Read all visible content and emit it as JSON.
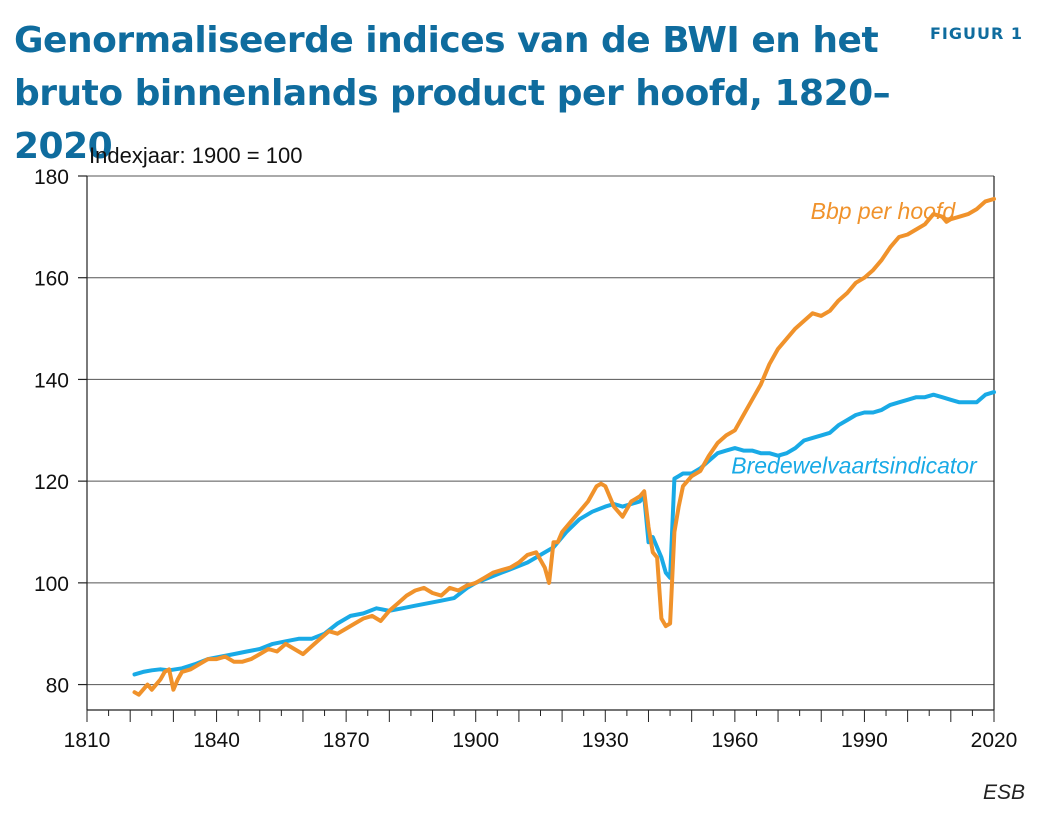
{
  "header": {
    "title": "Genormaliseerde indices van de BWI en het bruto binnenlands product per hoofd, 1820–2020",
    "figure_label": "FIGUUR 1"
  },
  "footer": {
    "source": "ESB"
  },
  "chart_data": {
    "type": "line",
    "title": "Genormaliseerde indices van de BWI en het bruto binnenlands product per hoofd, 1820–2020",
    "subtitle": "Indexjaar: 1900 = 100",
    "xlabel": "",
    "ylabel": "",
    "xlim": [
      1810,
      2020
    ],
    "ylim": [
      75,
      180
    ],
    "x_ticks": [
      1810,
      1840,
      1870,
      1900,
      1930,
      1960,
      1990,
      2020
    ],
    "y_ticks": [
      80,
      100,
      120,
      140,
      160,
      180
    ],
    "grid": "horizontal",
    "series": [
      {
        "name": "Bbp per hoofd",
        "color": "#f0922b",
        "x": [
          1821,
          1822,
          1823,
          1824,
          1825,
          1826,
          1827,
          1828,
          1829,
          1830,
          1831,
          1832,
          1834,
          1836,
          1838,
          1840,
          1842,
          1844,
          1846,
          1848,
          1850,
          1852,
          1854,
          1856,
          1858,
          1860,
          1862,
          1864,
          1866,
          1868,
          1870,
          1872,
          1874,
          1876,
          1878,
          1880,
          1882,
          1884,
          1886,
          1888,
          1890,
          1892,
          1894,
          1896,
          1898,
          1900,
          1902,
          1904,
          1906,
          1908,
          1910,
          1912,
          1914,
          1916,
          1917,
          1918,
          1919,
          1920,
          1922,
          1924,
          1926,
          1928,
          1929,
          1930,
          1932,
          1934,
          1936,
          1938,
          1939,
          1940,
          1941,
          1942,
          1943,
          1944,
          1945,
          1946,
          1947,
          1948,
          1950,
          1952,
          1954,
          1956,
          1958,
          1960,
          1962,
          1964,
          1966,
          1968,
          1970,
          1972,
          1974,
          1976,
          1978,
          1980,
          1982,
          1984,
          1986,
          1988,
          1990,
          1992,
          1994,
          1996,
          1998,
          2000,
          2002,
          2004,
          2006,
          2008,
          2009,
          2010,
          2012,
          2014,
          2016,
          2018,
          2020
        ],
        "values": [
          78.5,
          78,
          79,
          80,
          79,
          80,
          81,
          82.5,
          83,
          79,
          81,
          82.5,
          83,
          84,
          85,
          85,
          85.5,
          84.5,
          84.5,
          85,
          86,
          87,
          86.5,
          88,
          87,
          86,
          87.5,
          89,
          90.5,
          90,
          91,
          92,
          93,
          93.5,
          92.5,
          94.5,
          96,
          97.5,
          98.5,
          99,
          98,
          97.5,
          99,
          98.5,
          99.5,
          100,
          101,
          102,
          102.5,
          103,
          104,
          105.5,
          106,
          103,
          100,
          108,
          108,
          110,
          112,
          114,
          116,
          119,
          119.5,
          119,
          115,
          113,
          116,
          117,
          118,
          111,
          106,
          105,
          93,
          91.5,
          92,
          110,
          115,
          119,
          121,
          122,
          125,
          127.5,
          129,
          130,
          133,
          136,
          139,
          143,
          146,
          148,
          150,
          151.5,
          153,
          152.5,
          153.5,
          155.5,
          157,
          159,
          160,
          161.5,
          163.5,
          166,
          168,
          168.5,
          169.5,
          170.5,
          172.5,
          172,
          171,
          171.5,
          172,
          172.5,
          173.5,
          175,
          175.5
        ]
      },
      {
        "name": "Bredewelvaartsindicator",
        "color": "#19aae6",
        "x": [
          1821,
          1823,
          1825,
          1827,
          1829,
          1832,
          1835,
          1838,
          1841,
          1844,
          1847,
          1850,
          1853,
          1856,
          1859,
          1862,
          1865,
          1868,
          1871,
          1874,
          1877,
          1880,
          1883,
          1886,
          1889,
          1892,
          1895,
          1898,
          1900,
          1903,
          1906,
          1909,
          1912,
          1915,
          1918,
          1921,
          1924,
          1927,
          1930,
          1932,
          1934,
          1936,
          1938,
          1939,
          1940,
          1941,
          1942,
          1943,
          1944,
          1945,
          1946,
          1947,
          1948,
          1950,
          1952,
          1954,
          1956,
          1958,
          1960,
          1962,
          1964,
          1966,
          1968,
          1970,
          1972,
          1974,
          1976,
          1978,
          1980,
          1982,
          1984,
          1986,
          1988,
          1990,
          1992,
          1994,
          1996,
          1998,
          2000,
          2002,
          2004,
          2006,
          2008,
          2010,
          2012,
          2014,
          2016,
          2018,
          2020
        ],
        "values": [
          82,
          82.5,
          82.8,
          83,
          82.8,
          83.2,
          84,
          85,
          85.5,
          86,
          86.5,
          87,
          88,
          88.5,
          89,
          89,
          90,
          92,
          93.5,
          94,
          95,
          94.5,
          95,
          95.5,
          96,
          96.5,
          97,
          99,
          100,
          101,
          102,
          103,
          104,
          105.5,
          107,
          110,
          112.5,
          114,
          115,
          115.5,
          115,
          115.5,
          116,
          117,
          108,
          109,
          107,
          105,
          102,
          101,
          120.5,
          121,
          121.5,
          121.5,
          122.5,
          124,
          125.5,
          126,
          126.5,
          126,
          126,
          125.5,
          125.5,
          125,
          125.5,
          126.5,
          128,
          128.5,
          129,
          129.5,
          131,
          132,
          133,
          133.5,
          133.5,
          134,
          135,
          135.5,
          136,
          136.5,
          136.5,
          137,
          136.5,
          136,
          135.5,
          135.5,
          135.5,
          137,
          137.5
        ]
      }
    ],
    "annotations": [
      {
        "text": "Bbp per hoofd",
        "series": 0
      },
      {
        "text": "Bredewelvaartsindicator",
        "series": 1
      }
    ]
  }
}
